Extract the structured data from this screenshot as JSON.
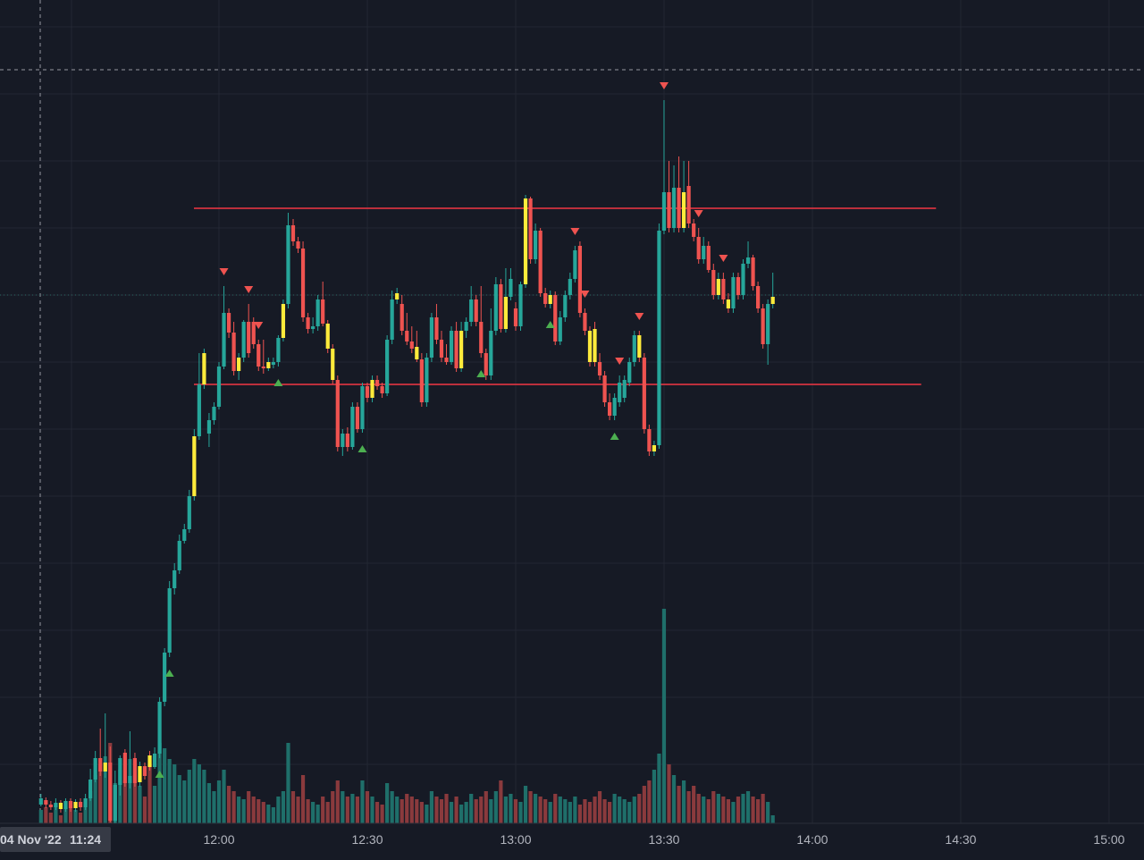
{
  "chart_data": {
    "type": "candlestick",
    "x_axis": {
      "tick_labels": [
        "12:00",
        "12:30",
        "13:00",
        "13:30",
        "14:00",
        "14:30",
        "15:00"
      ],
      "cursor_date": "04 Nov '22",
      "cursor_time": "11:24"
    },
    "grid": true,
    "price_axis_visible": false,
    "colors": {
      "background": "#161a25",
      "up": "#26a69a",
      "down": "#ef5350",
      "inside_bar": "#ffeb3b",
      "up_volume": "#1f6f6a",
      "down_volume": "#8a3a3d",
      "level_line": "#f23645",
      "signal_up": "#4caf50",
      "signal_down": "#ef5350",
      "grid": "#232733",
      "crosshair": "#9598a1"
    },
    "horizontal_levels": [
      {
        "price": 233,
        "from": "12:00",
        "to": "14:25"
      },
      {
        "price": 430,
        "from": "12:00",
        "to": "14:22"
      }
    ],
    "candles": [
      [
        "11:24",
        900,
        893,
        902,
        888,
        5
      ],
      [
        "11:25",
        895,
        900,
        904,
        892,
        6
      ],
      [
        "11:26",
        900,
        903,
        906,
        896,
        4
      ],
      [
        "11:27",
        903,
        898,
        906,
        893,
        7
      ],
      [
        "11:28",
        898,
        905,
        909,
        895,
        3
      ],
      [
        "11:29",
        905,
        896,
        908,
        893,
        6
      ],
      [
        "11:30",
        896,
        904,
        908,
        893,
        8
      ],
      [
        "11:31",
        904,
        897,
        908,
        894,
        5
      ],
      [
        "11:32",
        897,
        903,
        907,
        893,
        4
      ],
      [
        "11:33",
        903,
        893,
        906,
        888,
        9
      ],
      [
        "11:34",
        893,
        872,
        896,
        860,
        12
      ],
      [
        "11:35",
        872,
        848,
        875,
        840,
        18
      ],
      [
        "11:36",
        848,
        863,
        868,
        815,
        22
      ],
      [
        "11:37",
        863,
        853,
        870,
        798,
        25
      ],
      [
        "11:38",
        853,
        918,
        920,
        835,
        30
      ],
      [
        "11:39",
        918,
        878,
        922,
        862,
        15
      ],
      [
        "11:40",
        878,
        848,
        890,
        845,
        20
      ],
      [
        "11:41",
        842,
        876,
        880,
        838,
        16
      ],
      [
        "11:42",
        876,
        868,
        882,
        818,
        24
      ],
      [
        "11:43",
        848,
        876,
        880,
        842,
        18
      ],
      [
        "11:44",
        875,
        857,
        880,
        852,
        14
      ],
      [
        "11:45",
        857,
        868,
        872,
        853,
        10
      ],
      [
        "11:46",
        845,
        858,
        862,
        840,
        22
      ],
      [
        "11:47",
        858,
        843,
        860,
        836,
        14
      ],
      [
        "11:48",
        843,
        785,
        848,
        780,
        30
      ],
      [
        "11:49",
        785,
        730,
        790,
        725,
        28
      ],
      [
        "11:50",
        730,
        658,
        735,
        650,
        24
      ],
      [
        "11:51",
        658,
        638,
        665,
        630,
        22
      ],
      [
        "11:52",
        638,
        605,
        642,
        598,
        18
      ],
      [
        "11:53",
        605,
        592,
        608,
        586,
        16
      ],
      [
        "11:54",
        592,
        555,
        596,
        548,
        20
      ],
      [
        "11:55",
        555,
        488,
        560,
        480,
        24
      ],
      [
        "11:56",
        488,
        430,
        492,
        395,
        22
      ],
      [
        "11:57",
        430,
        395,
        435,
        390,
        20
      ],
      [
        "11:58",
        485,
        470,
        500,
        462,
        15
      ],
      [
        "11:59",
        470,
        455,
        475,
        450,
        12
      ],
      [
        "12:00",
        455,
        410,
        458,
        405,
        16
      ],
      [
        "12:01",
        410,
        350,
        413,
        320,
        20
      ],
      [
        "12:02",
        350,
        372,
        378,
        345,
        14
      ],
      [
        "12:03",
        372,
        415,
        420,
        360,
        12
      ],
      [
        "12:04",
        415,
        400,
        425,
        395,
        10
      ],
      [
        "12:05",
        400,
        360,
        405,
        358,
        9
      ],
      [
        "12:06",
        360,
        395,
        400,
        340,
        12
      ],
      [
        "12:07",
        360,
        385,
        390,
        355,
        10
      ],
      [
        "12:08",
        385,
        410,
        415,
        380,
        9
      ],
      [
        "12:09",
        410,
        412,
        418,
        380,
        8
      ],
      [
        "12:10",
        412,
        405,
        415,
        400,
        7
      ],
      [
        "12:11",
        408,
        405,
        412,
        400,
        6
      ],
      [
        "12:12",
        405,
        378,
        410,
        375,
        10
      ],
      [
        "12:13",
        378,
        340,
        382,
        335,
        12
      ],
      [
        "12:14",
        340,
        252,
        345,
        238,
        30
      ],
      [
        "12:15",
        252,
        270,
        275,
        245,
        12
      ],
      [
        "12:16",
        270,
        278,
        283,
        265,
        10
      ],
      [
        "12:17",
        278,
        355,
        360,
        270,
        18
      ],
      [
        "12:18",
        355,
        368,
        373,
        350,
        9
      ],
      [
        "12:19",
        368,
        365,
        373,
        355,
        8
      ],
      [
        "12:20",
        365,
        335,
        370,
        330,
        7
      ],
      [
        "12:21",
        335,
        362,
        365,
        315,
        10
      ],
      [
        "12:22",
        362,
        390,
        395,
        358,
        8
      ],
      [
        "12:23",
        390,
        425,
        430,
        385,
        12
      ],
      [
        "12:24",
        425,
        500,
        505,
        420,
        16
      ],
      [
        "12:25",
        500,
        485,
        510,
        480,
        12
      ],
      [
        "12:26",
        485,
        500,
        505,
        478,
        10
      ],
      [
        "12:27",
        500,
        455,
        503,
        450,
        11
      ],
      [
        "12:28",
        455,
        480,
        484,
        450,
        10
      ],
      [
        "12:29",
        480,
        432,
        484,
        428,
        16
      ],
      [
        "12:30",
        432,
        445,
        450,
        428,
        12
      ],
      [
        "12:31",
        445,
        425,
        450,
        420,
        10
      ],
      [
        "12:32",
        425,
        432,
        436,
        420,
        8
      ],
      [
        "12:33",
        432,
        440,
        445,
        428,
        7
      ],
      [
        "12:34",
        440,
        380,
        443,
        375,
        15
      ],
      [
        "12:35",
        380,
        335,
        385,
        325,
        12
      ],
      [
        "12:36",
        335,
        328,
        340,
        322,
        10
      ],
      [
        "12:37",
        340,
        370,
        375,
        330,
        9
      ],
      [
        "12:38",
        370,
        382,
        386,
        350,
        11
      ],
      [
        "12:39",
        382,
        390,
        395,
        365,
        10
      ],
      [
        "12:40",
        388,
        402,
        405,
        370,
        9
      ],
      [
        "12:41",
        402,
        450,
        455,
        395,
        8
      ],
      [
        "12:42",
        450,
        400,
        455,
        395,
        7
      ],
      [
        "12:43",
        400,
        355,
        405,
        350,
        12
      ],
      [
        "12:44",
        355,
        380,
        385,
        340,
        10
      ],
      [
        "12:45",
        380,
        400,
        405,
        370,
        9
      ],
      [
        "12:46",
        400,
        405,
        408,
        385,
        11
      ],
      [
        "12:47",
        405,
        370,
        408,
        365,
        8
      ],
      [
        "12:48",
        370,
        412,
        416,
        360,
        10
      ],
      [
        "12:49",
        412,
        370,
        416,
        360,
        7
      ],
      [
        "12:50",
        370,
        360,
        378,
        355,
        8
      ],
      [
        "12:51",
        360,
        335,
        365,
        320,
        11
      ],
      [
        "12:52",
        335,
        360,
        365,
        330,
        9
      ],
      [
        "12:53",
        360,
        395,
        400,
        320,
        10
      ],
      [
        "12:54",
        395,
        420,
        425,
        390,
        12
      ],
      [
        "12:55",
        420,
        370,
        425,
        345,
        9
      ],
      [
        "12:56",
        370,
        318,
        375,
        310,
        12
      ],
      [
        "12:57",
        318,
        368,
        372,
        312,
        16
      ],
      [
        "12:58",
        368,
        332,
        372,
        300,
        10
      ],
      [
        "12:59",
        332,
        312,
        336,
        300,
        11
      ],
      [
        "13:00",
        345,
        365,
        370,
        338,
        9
      ],
      [
        "13:01",
        365,
        318,
        370,
        315,
        8
      ],
      [
        "13:02",
        318,
        222,
        322,
        218,
        14
      ],
      [
        "13:03",
        222,
        290,
        295,
        220,
        12
      ],
      [
        "13:04",
        290,
        258,
        295,
        250,
        11
      ],
      [
        "13:05",
        258,
        328,
        332,
        255,
        10
      ],
      [
        "13:06",
        328,
        340,
        344,
        322,
        9
      ],
      [
        "13:07",
        340,
        330,
        345,
        325,
        8
      ],
      [
        "13:08",
        330,
        382,
        386,
        326,
        11
      ],
      [
        "13:09",
        382,
        355,
        386,
        348,
        10
      ],
      [
        "13:10",
        355,
        330,
        360,
        325,
        9
      ],
      [
        "13:11",
        330,
        312,
        335,
        305,
        8
      ],
      [
        "13:12",
        312,
        280,
        316,
        275,
        10
      ],
      [
        "13:13",
        275,
        350,
        355,
        270,
        7
      ],
      [
        "13:14",
        350,
        370,
        375,
        345,
        9
      ],
      [
        "13:15",
        370,
        405,
        410,
        365,
        8
      ],
      [
        "13:16",
        368,
        405,
        410,
        360,
        10
      ],
      [
        "13:17",
        405,
        420,
        425,
        395,
        12
      ],
      [
        "13:18",
        420,
        450,
        455,
        415,
        9
      ],
      [
        "13:19",
        450,
        465,
        470,
        440,
        8
      ],
      [
        "13:20",
        465,
        445,
        470,
        440,
        11
      ],
      [
        "13:21",
        450,
        428,
        455,
        420,
        10
      ],
      [
        "13:22",
        445,
        425,
        450,
        420,
        9
      ],
      [
        "13:23",
        428,
        405,
        432,
        400,
        8
      ],
      [
        "13:24",
        405,
        375,
        410,
        370,
        10
      ],
      [
        "13:25",
        375,
        400,
        405,
        370,
        11
      ],
      [
        "13:26",
        400,
        480,
        485,
        395,
        14
      ],
      [
        "13:27",
        480,
        505,
        510,
        475,
        16
      ],
      [
        "13:28",
        505,
        498,
        510,
        493,
        20
      ],
      [
        "13:29",
        498,
        258,
        502,
        250,
        26
      ],
      [
        "13:30",
        258,
        215,
        262,
        112,
        80
      ],
      [
        "13:31",
        215,
        255,
        260,
        180,
        22
      ],
      [
        "13:32",
        255,
        210,
        260,
        185,
        18
      ],
      [
        "13:33",
        210,
        255,
        260,
        175,
        14
      ],
      [
        "13:34",
        255,
        215,
        260,
        180,
        16
      ],
      [
        "13:35",
        208,
        250,
        255,
        180,
        12
      ],
      [
        "13:36",
        250,
        265,
        270,
        245,
        14
      ],
      [
        "13:37",
        265,
        290,
        295,
        255,
        11
      ],
      [
        "13:38",
        290,
        275,
        295,
        265,
        10
      ],
      [
        "13:39",
        275,
        302,
        305,
        270,
        9
      ],
      [
        "13:40",
        302,
        330,
        335,
        295,
        12
      ],
      [
        "13:41",
        330,
        312,
        335,
        305,
        11
      ],
      [
        "13:42",
        312,
        335,
        340,
        305,
        10
      ],
      [
        "13:43",
        335,
        345,
        350,
        328,
        9
      ],
      [
        "13:44",
        345,
        310,
        350,
        305,
        8
      ],
      [
        "13:45",
        310,
        330,
        335,
        305,
        10
      ],
      [
        "13:46",
        330,
        295,
        335,
        290,
        11
      ],
      [
        "13:47",
        295,
        288,
        300,
        270,
        12
      ],
      [
        "13:48",
        288,
        320,
        325,
        285,
        10
      ],
      [
        "13:49",
        320,
        345,
        350,
        315,
        9
      ],
      [
        "13:50",
        345,
        385,
        390,
        340,
        11
      ],
      [
        "13:51",
        385,
        340,
        408,
        335,
        8
      ],
      [
        "13:52",
        340,
        332,
        345,
        305,
        3
      ]
    ],
    "signals": [
      {
        "time": "11:48",
        "dir": "up"
      },
      {
        "time": "11:50",
        "dir": "up"
      },
      {
        "time": "12:01",
        "dir": "down"
      },
      {
        "time": "12:06",
        "dir": "down"
      },
      {
        "time": "12:08",
        "dir": "down"
      },
      {
        "time": "12:12",
        "dir": "up"
      },
      {
        "time": "12:29",
        "dir": "up"
      },
      {
        "time": "12:53",
        "dir": "up"
      },
      {
        "time": "13:07",
        "dir": "up"
      },
      {
        "time": "13:12",
        "dir": "down"
      },
      {
        "time": "13:14",
        "dir": "down"
      },
      {
        "time": "13:20",
        "dir": "up"
      },
      {
        "time": "13:21",
        "dir": "down"
      },
      {
        "time": "13:25",
        "dir": "down"
      },
      {
        "time": "13:30",
        "dir": "down"
      },
      {
        "time": "13:37",
        "dir": "down"
      },
      {
        "time": "13:42",
        "dir": "down"
      }
    ]
  }
}
